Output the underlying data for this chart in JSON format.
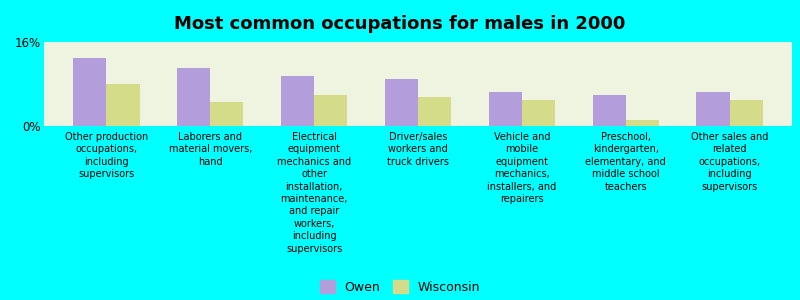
{
  "title": "Most common occupations for males in 2000",
  "background_color": "#00FFFF",
  "plot_bg_color": "#eef4e0",
  "categories": [
    "Other production\noccupations,\nincluding\nsupervisors",
    "Laborers and\nmaterial movers,\nhand",
    "Electrical\nequipment\nmechanics and\nother\ninstallation,\nmaintenance,\nand repair\nworkers,\nincluding\nsupervisors",
    "Driver/sales\nworkers and\ntruck drivers",
    "Vehicle and\nmobile\nequipment\nmechanics,\ninstallers, and\nrepairers",
    "Preschool,\nkindergarten,\nelementary, and\nmiddle school\nteachers",
    "Other sales and\nrelated\noccupations,\nincluding\nsupervisors"
  ],
  "owen_values": [
    13.0,
    11.0,
    9.5,
    9.0,
    6.5,
    6.0,
    6.5
  ],
  "wisconsin_values": [
    8.0,
    4.5,
    6.0,
    5.5,
    5.0,
    1.2,
    5.0
  ],
  "owen_color": "#b39ddb",
  "wisconsin_color": "#d4dc8a",
  "ylim": [
    0,
    16
  ],
  "ytick_labels": [
    "0%",
    "16%"
  ],
  "legend_labels": [
    "Owen",
    "Wisconsin"
  ],
  "bar_width": 0.32,
  "title_fontsize": 13,
  "label_fontsize": 7.0
}
